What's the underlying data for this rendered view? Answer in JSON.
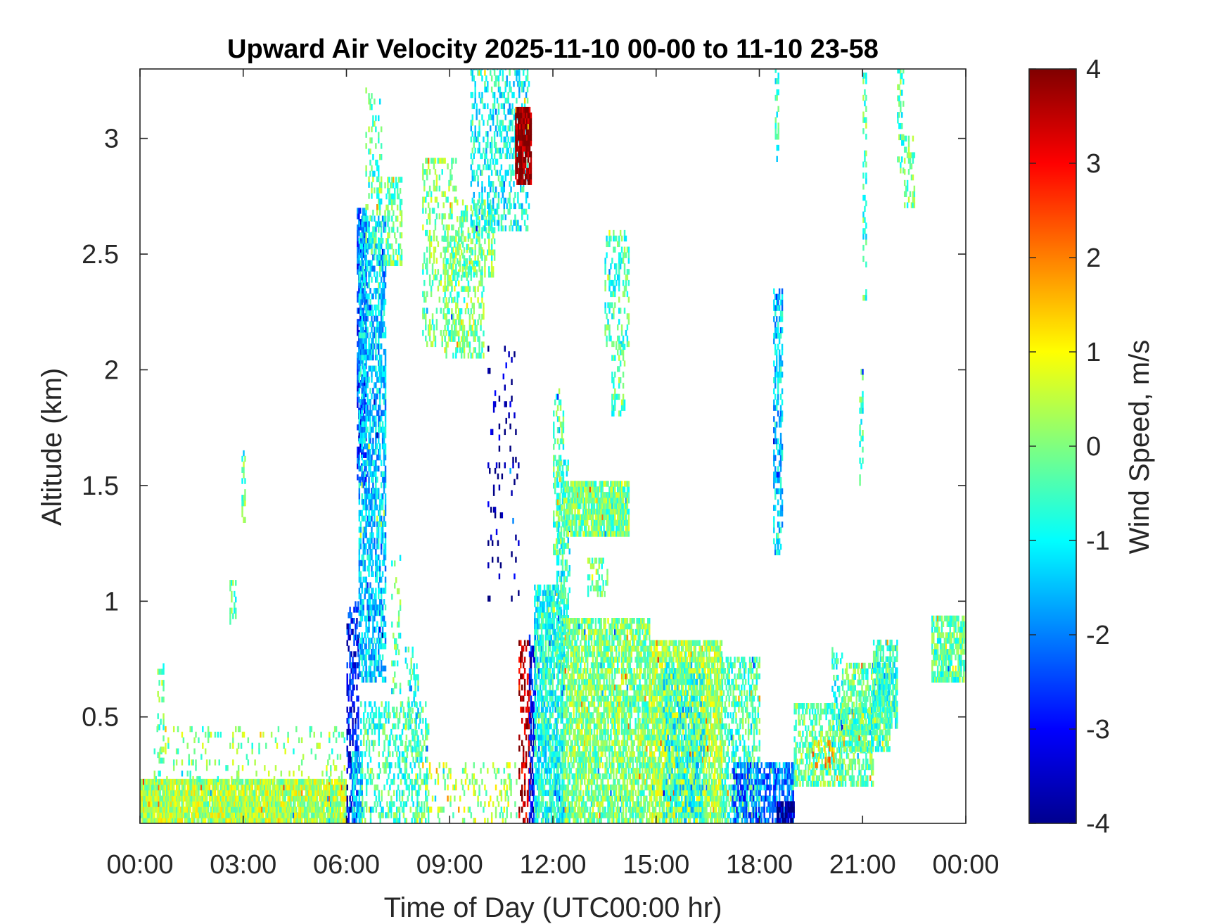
{
  "chart_data": {
    "type": "heatmap",
    "title": "Upward Air Velocity 2025-11-10 00-00 to 11-10 23-58",
    "xlabel": "Time of Day (UTC00:00 hr)",
    "ylabel": "Altitude (km)",
    "colorbar_label": "Wind Speed, m/s",
    "colormap": "jet",
    "xlim": [
      0,
      24
    ],
    "ylim": [
      0.04,
      3.3
    ],
    "clim": [
      -4,
      4
    ],
    "x_ticks": [
      {
        "value": 0,
        "label": "00:00"
      },
      {
        "value": 3,
        "label": "03:00"
      },
      {
        "value": 6,
        "label": "06:00"
      },
      {
        "value": 9,
        "label": "09:00"
      },
      {
        "value": 12,
        "label": "12:00"
      },
      {
        "value": 15,
        "label": "15:00"
      },
      {
        "value": 18,
        "label": "18:00"
      },
      {
        "value": 21,
        "label": "21:00"
      },
      {
        "value": 24,
        "label": "00:00"
      }
    ],
    "y_ticks": [
      {
        "value": 0.5,
        "label": "0.5"
      },
      {
        "value": 1,
        "label": "1"
      },
      {
        "value": 1.5,
        "label": "1.5"
      },
      {
        "value": 2,
        "label": "2"
      },
      {
        "value": 2.5,
        "label": "2.5"
      },
      {
        "value": 3,
        "label": "3"
      }
    ],
    "colorbar_ticks": [
      {
        "value": 4,
        "label": "4"
      },
      {
        "value": 3,
        "label": "3"
      },
      {
        "value": 2,
        "label": "2"
      },
      {
        "value": 1,
        "label": "1"
      },
      {
        "value": 0,
        "label": "0"
      },
      {
        "value": -1,
        "label": "-1"
      },
      {
        "value": -2,
        "label": "-2"
      },
      {
        "value": -3,
        "label": "-3"
      },
      {
        "value": -4,
        "label": "-4"
      }
    ],
    "regions_note_free": true,
    "regions": [
      {
        "t0": 0.0,
        "t1": 6.0,
        "h0": 0.04,
        "h1": 0.22,
        "w": 0.4,
        "fill": 0.95
      },
      {
        "t0": 0.4,
        "t1": 6.0,
        "h0": 0.22,
        "h1": 0.45,
        "w": 0.0,
        "fill": 0.12
      },
      {
        "t0": 0.5,
        "t1": 0.7,
        "h0": 0.3,
        "h1": 0.72,
        "w": -0.3,
        "fill": 0.35
      },
      {
        "t0": 2.6,
        "t1": 2.8,
        "h0": 0.9,
        "h1": 1.07,
        "w": -0.3,
        "fill": 0.4
      },
      {
        "t0": 2.95,
        "t1": 3.05,
        "h0": 1.34,
        "h1": 1.64,
        "w": -0.2,
        "fill": 0.6
      },
      {
        "t0": 6.0,
        "t1": 6.35,
        "h0": 0.04,
        "h1": 1.0,
        "w": -2.9,
        "fill": 0.45
      },
      {
        "t0": 6.15,
        "t1": 6.45,
        "h0": 0.04,
        "h1": 0.35,
        "w": -1.3,
        "fill": 0.7
      },
      {
        "t0": 6.3,
        "t1": 6.55,
        "h0": 1.5,
        "h1": 2.7,
        "w": -2.5,
        "fill": 0.65
      },
      {
        "t0": 6.35,
        "t1": 7.15,
        "h0": 0.65,
        "h1": 2.65,
        "w": -1.4,
        "fill": 0.6
      },
      {
        "t0": 6.55,
        "t1": 7.0,
        "h0": 2.5,
        "h1": 3.2,
        "w": -0.4,
        "fill": 0.25
      },
      {
        "t0": 7.1,
        "t1": 7.6,
        "h0": 2.45,
        "h1": 2.83,
        "w": -0.2,
        "fill": 0.45
      },
      {
        "t0": 6.4,
        "t1": 8.4,
        "h0": 0.04,
        "h1": 0.55,
        "w": -0.5,
        "fill": 0.35
      },
      {
        "t0": 7.7,
        "t1": 8.1,
        "h0": 0.3,
        "h1": 0.8,
        "w": -0.6,
        "fill": 0.25
      },
      {
        "t0": 8.2,
        "t1": 9.2,
        "h0": 2.1,
        "h1": 2.9,
        "w": 0.0,
        "fill": 0.3
      },
      {
        "t0": 8.8,
        "t1": 10.0,
        "h0": 2.05,
        "h1": 2.6,
        "w": -0.1,
        "fill": 0.35
      },
      {
        "t0": 9.2,
        "t1": 10.3,
        "h0": 2.4,
        "h1": 2.72,
        "w": -0.2,
        "fill": 0.4
      },
      {
        "t0": 9.6,
        "t1": 11.3,
        "h0": 2.6,
        "h1": 3.3,
        "w": -0.9,
        "fill": 0.35
      },
      {
        "t0": 10.9,
        "t1": 11.35,
        "h0": 2.8,
        "h1": 3.12,
        "w": 4.0,
        "fill": 0.9
      },
      {
        "t0": 8.0,
        "t1": 11.0,
        "h0": 0.04,
        "h1": 0.3,
        "w": 0.3,
        "fill": 0.18
      },
      {
        "t0": 11.0,
        "t1": 11.35,
        "h0": 0.04,
        "h1": 0.85,
        "w": 3.5,
        "fill": 0.3
      },
      {
        "t0": 11.3,
        "t1": 11.5,
        "h0": 0.04,
        "h1": 0.85,
        "w": -3.0,
        "fill": 0.5
      },
      {
        "t0": 11.45,
        "t1": 12.3,
        "h0": 0.04,
        "h1": 1.05,
        "w": -0.8,
        "fill": 0.75
      },
      {
        "t0": 12.1,
        "t1": 12.5,
        "h0": 0.7,
        "h1": 1.6,
        "w": -0.6,
        "fill": 0.55
      },
      {
        "t0": 12.3,
        "t1": 14.2,
        "h0": 1.28,
        "h1": 1.5,
        "w": -0.1,
        "fill": 0.9
      },
      {
        "t0": 13.0,
        "t1": 13.6,
        "h0": 1.02,
        "h1": 1.18,
        "w": -0.2,
        "fill": 0.4
      },
      {
        "t0": 12.3,
        "t1": 14.8,
        "h0": 0.04,
        "h1": 0.92,
        "w": 0.0,
        "fill": 0.75
      },
      {
        "t0": 13.5,
        "t1": 14.2,
        "h0": 2.1,
        "h1": 2.6,
        "w": -0.5,
        "fill": 0.35
      },
      {
        "t0": 13.7,
        "t1": 14.1,
        "h0": 1.8,
        "h1": 2.1,
        "w": -0.3,
        "fill": 0.35
      },
      {
        "t0": 14.8,
        "t1": 16.9,
        "h0": 0.04,
        "h1": 0.82,
        "w": 0.3,
        "fill": 0.85
      },
      {
        "t0": 15.2,
        "t1": 16.4,
        "h0": 0.04,
        "h1": 0.72,
        "w": -0.9,
        "fill": 0.4
      },
      {
        "t0": 16.9,
        "t1": 18.0,
        "h0": 0.04,
        "h1": 0.75,
        "w": -0.4,
        "fill": 0.55
      },
      {
        "t0": 17.2,
        "t1": 18.0,
        "h0": 0.04,
        "h1": 0.3,
        "w": -2.2,
        "fill": 0.5
      },
      {
        "t0": 18.0,
        "t1": 19.0,
        "h0": 0.04,
        "h1": 0.3,
        "w": -2.0,
        "fill": 0.6
      },
      {
        "t0": 18.5,
        "t1": 19.0,
        "h0": 0.04,
        "h1": 0.13,
        "w": -3.8,
        "fill": 0.9
      },
      {
        "t0": 18.4,
        "t1": 18.65,
        "h0": 1.2,
        "h1": 2.35,
        "w": -1.4,
        "fill": 0.5
      },
      {
        "t0": 18.45,
        "t1": 18.55,
        "h0": 2.9,
        "h1": 3.3,
        "w": -0.8,
        "fill": 0.5
      },
      {
        "t0": 19.0,
        "t1": 21.3,
        "h0": 0.2,
        "h1": 0.55,
        "w": -0.2,
        "fill": 0.55
      },
      {
        "t0": 19.5,
        "t1": 20.2,
        "h0": 0.28,
        "h1": 0.4,
        "w": 1.6,
        "fill": 0.3
      },
      {
        "t0": 20.1,
        "t1": 20.4,
        "h0": 0.25,
        "h1": 0.78,
        "w": -0.7,
        "fill": 0.4
      },
      {
        "t0": 20.4,
        "t1": 21.8,
        "h0": 0.35,
        "h1": 0.72,
        "w": -0.3,
        "fill": 0.65
      },
      {
        "t0": 21.3,
        "t1": 22.0,
        "h0": 0.45,
        "h1": 0.82,
        "w": -0.6,
        "fill": 0.65
      },
      {
        "t0": 22.0,
        "t1": 22.2,
        "h0": 2.85,
        "h1": 3.3,
        "w": -0.4,
        "fill": 0.4
      },
      {
        "t0": 22.2,
        "t1": 22.5,
        "h0": 2.7,
        "h1": 3.0,
        "w": -0.3,
        "fill": 0.45
      },
      {
        "t0": 21.0,
        "t1": 21.1,
        "h0": 2.3,
        "h1": 3.3,
        "w": -0.5,
        "fill": 0.35
      },
      {
        "t0": 20.9,
        "t1": 21.0,
        "h0": 1.5,
        "h1": 2.0,
        "w": -0.5,
        "fill": 0.3
      },
      {
        "t0": 23.0,
        "t1": 24.0,
        "h0": 0.65,
        "h1": 0.92,
        "w": -0.3,
        "fill": 0.75
      },
      {
        "t0": 7.3,
        "t1": 7.55,
        "h0": 0.6,
        "h1": 1.2,
        "w": -0.3,
        "fill": 0.2
      },
      {
        "t0": 10.1,
        "t1": 11.0,
        "h0": 1.0,
        "h1": 2.1,
        "w": -3.8,
        "fill": 0.06
      },
      {
        "t0": 12.0,
        "t1": 12.3,
        "h0": 1.2,
        "h1": 1.9,
        "w": -0.3,
        "fill": 0.35
      }
    ]
  }
}
